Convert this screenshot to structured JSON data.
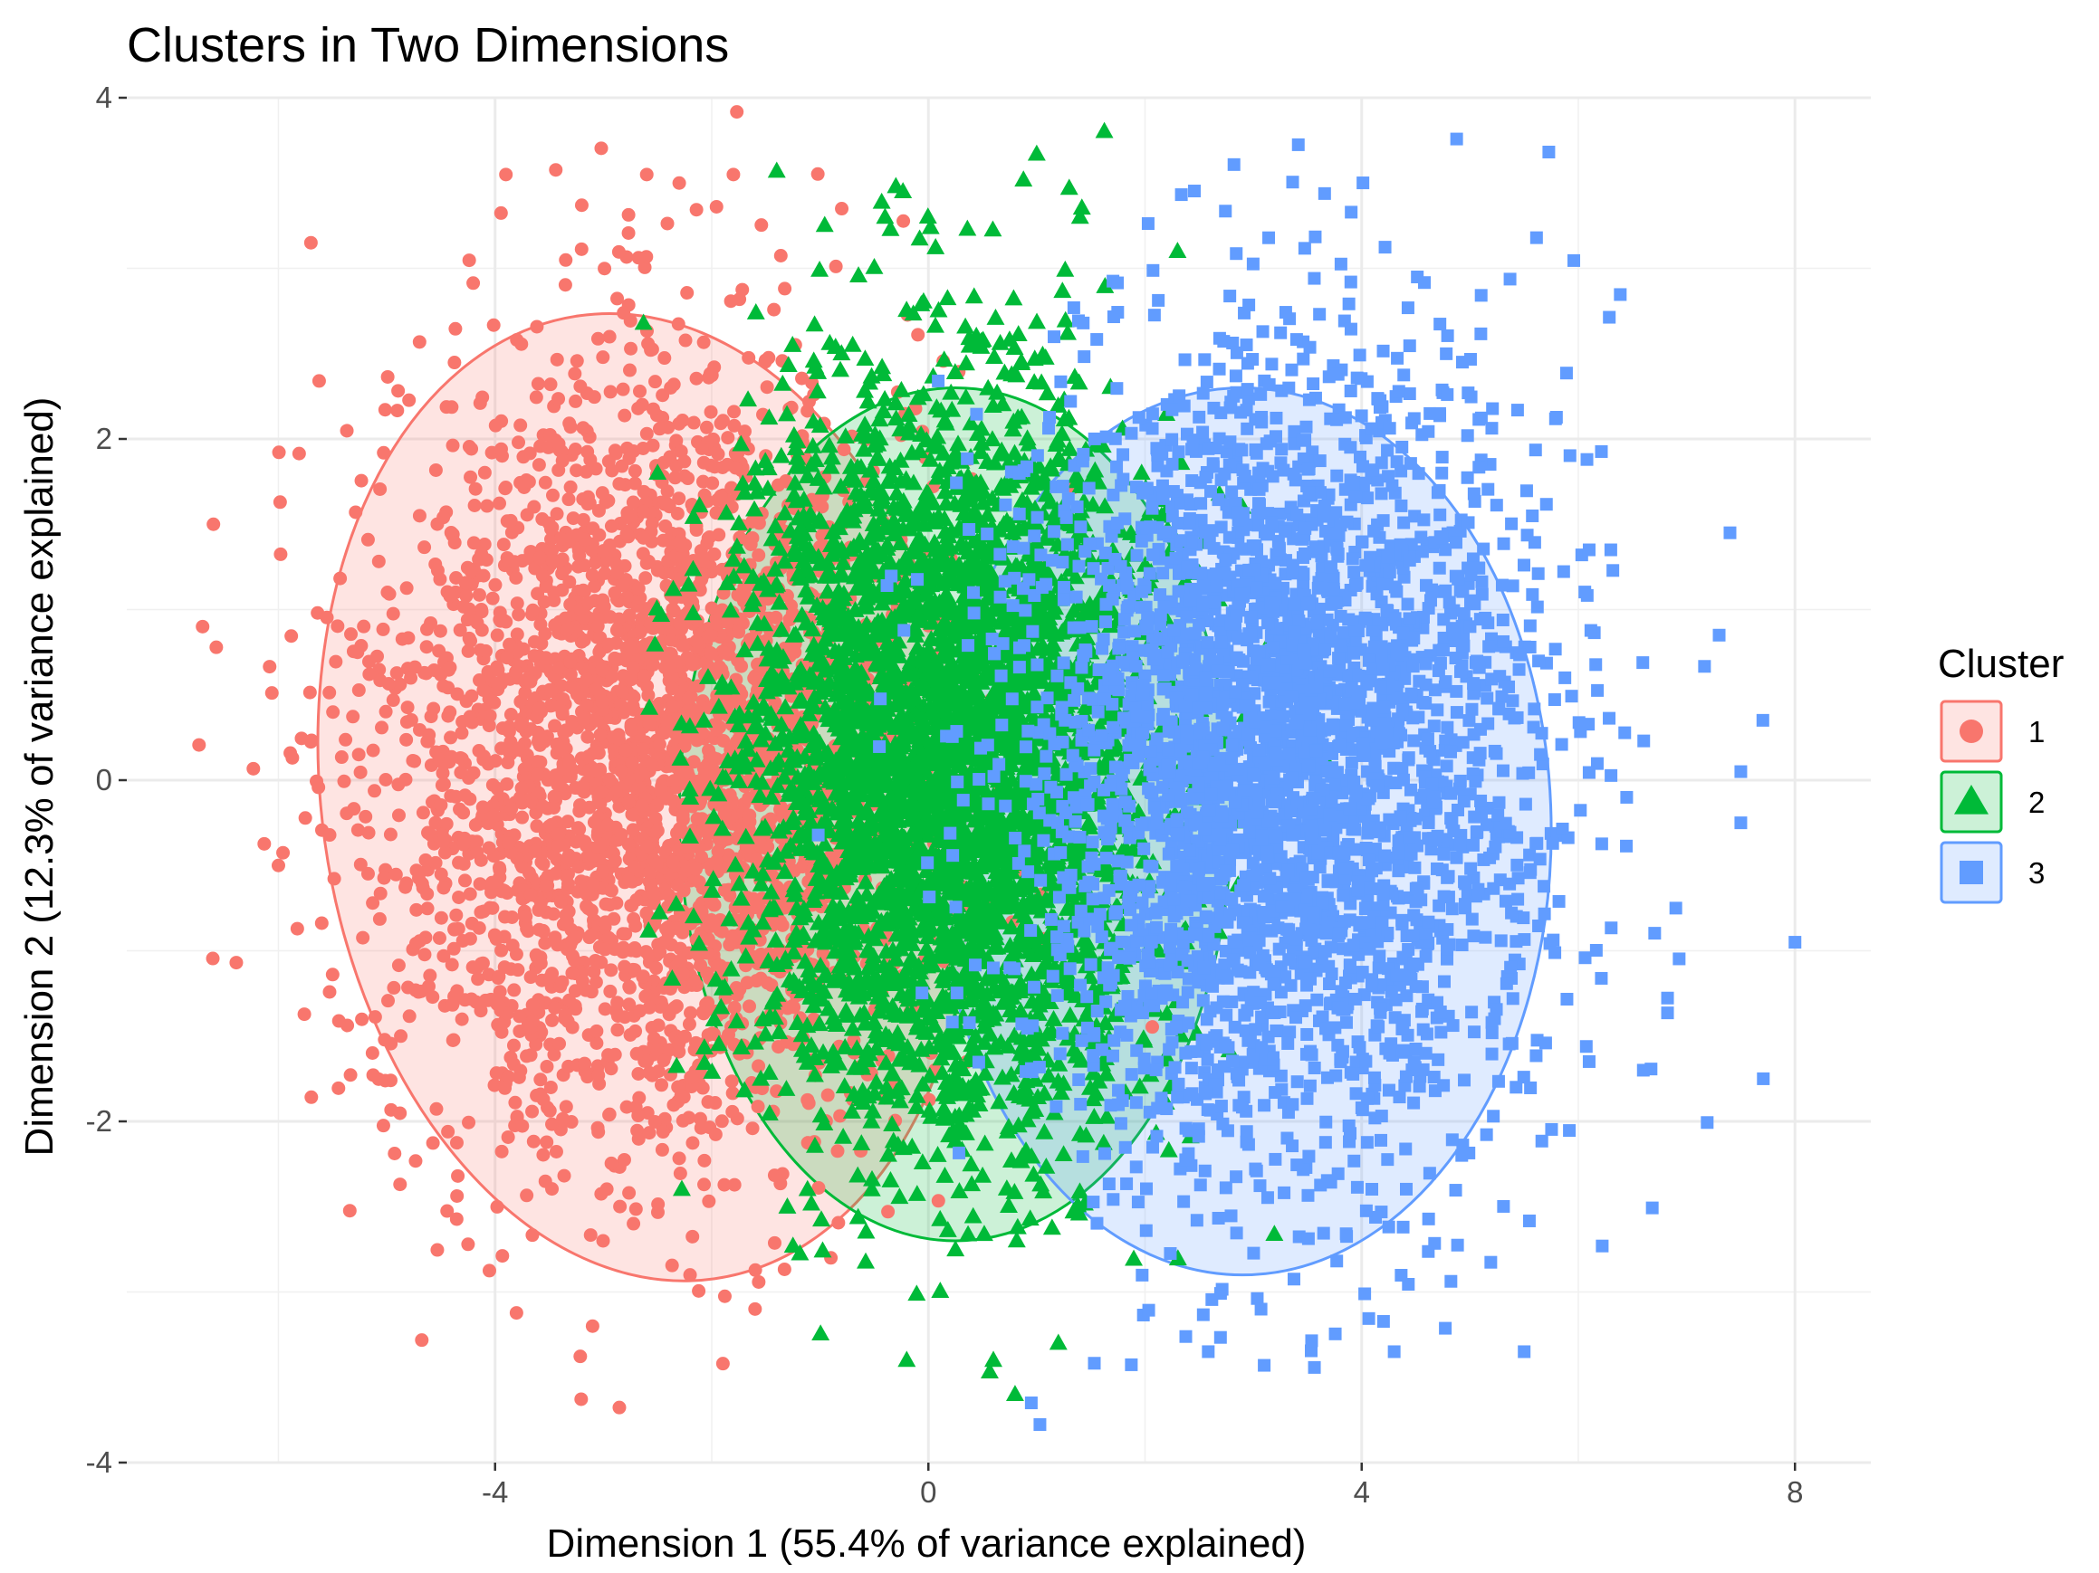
{
  "chart_data": {
    "type": "scatter",
    "title": "Clusters in Two Dimensions",
    "xlabel": "Dimension 1 (55.4% of variance explained)",
    "ylabel": "Dimension 2 (12.3% of variance explained)",
    "xlim": [
      -7.4,
      8.7
    ],
    "ylim": [
      -4.0,
      4.0
    ],
    "x_ticks": [
      -4,
      0,
      4,
      8
    ],
    "x_tick_labels": [
      "-4",
      "0",
      "4",
      "8"
    ],
    "y_ticks": [
      -4,
      -2,
      0,
      2,
      4
    ],
    "y_tick_labels": [
      "-4",
      "-2",
      "0",
      "2",
      "4"
    ],
    "grid": true,
    "legend": {
      "title": "Cluster",
      "position": "right"
    },
    "series": [
      {
        "name": "1",
        "marker": "circle",
        "color": "#F8766D",
        "n_points": 3200,
        "center": [
          -2.6,
          0.1
        ],
        "spread": [
          1.25,
          1.15
        ],
        "ellipse": {
          "center": [
            -2.6,
            -0.1
          ],
          "radius_x": 3.0,
          "radius_y": 2.85,
          "angle_deg": 8
        },
        "extreme_points": [
          [
            -5.7,
            3.15
          ],
          [
            -3.9,
            3.55
          ],
          [
            -2.6,
            3.55
          ],
          [
            -1.8,
            3.55
          ],
          [
            -3.2,
            3.37
          ],
          [
            -2.3,
            3.5
          ],
          [
            -6.7,
            0.9
          ],
          [
            -6.6,
            1.5
          ],
          [
            -6.0,
            -0.5
          ],
          [
            -3.1,
            -3.2
          ],
          [
            -2.2,
            -2.9
          ],
          [
            -1.6,
            -3.1
          ],
          [
            -0.9,
            -2.8
          ],
          [
            -0.8,
            3.35
          ]
        ]
      },
      {
        "name": "2",
        "marker": "triangle",
        "color": "#00BA38",
        "n_points": 3800,
        "center": [
          0.2,
          0.1
        ],
        "spread": [
          0.95,
          1.05
        ],
        "ellipse": {
          "center": [
            0.25,
            -0.2
          ],
          "radius_x": 2.55,
          "radius_y": 2.5,
          "angle_deg": 0
        },
        "extreme_points": [
          [
            1.0,
            3.67
          ],
          [
            -1.4,
            3.57
          ],
          [
            1.3,
            3.47
          ],
          [
            1.4,
            3.3
          ],
          [
            -0.3,
            3.48
          ],
          [
            -0.4,
            3.3
          ],
          [
            2.3,
            3.1
          ],
          [
            0.6,
            -3.4
          ],
          [
            -0.2,
            -3.4
          ],
          [
            1.2,
            -3.3
          ],
          [
            0.8,
            -3.6
          ],
          [
            -2.5,
            1.8
          ],
          [
            2.9,
            1.6
          ]
        ]
      },
      {
        "name": "3",
        "marker": "square",
        "color": "#619CFF",
        "n_points": 3300,
        "center": [
          3.2,
          0.1
        ],
        "spread": [
          1.2,
          1.2
        ],
        "ellipse": {
          "center": [
            2.9,
            -0.3
          ],
          "radius_x": 2.85,
          "radius_y": 2.6,
          "angle_deg": 0
        },
        "extreme_points": [
          [
            8.0,
            -0.95
          ],
          [
            7.4,
            1.45
          ],
          [
            7.3,
            0.85
          ],
          [
            7.5,
            0.05
          ],
          [
            7.5,
            -0.25
          ],
          [
            6.9,
            -0.75
          ],
          [
            6.6,
            -1.7
          ],
          [
            3.9,
            2.92
          ],
          [
            0.95,
            -3.65
          ],
          [
            3.1,
            -3.43
          ],
          [
            5.5,
            -3.35
          ],
          [
            4.3,
            -3.35
          ],
          [
            6.1,
            1.35
          ],
          [
            6.3,
            1.35
          ]
        ]
      }
    ]
  }
}
